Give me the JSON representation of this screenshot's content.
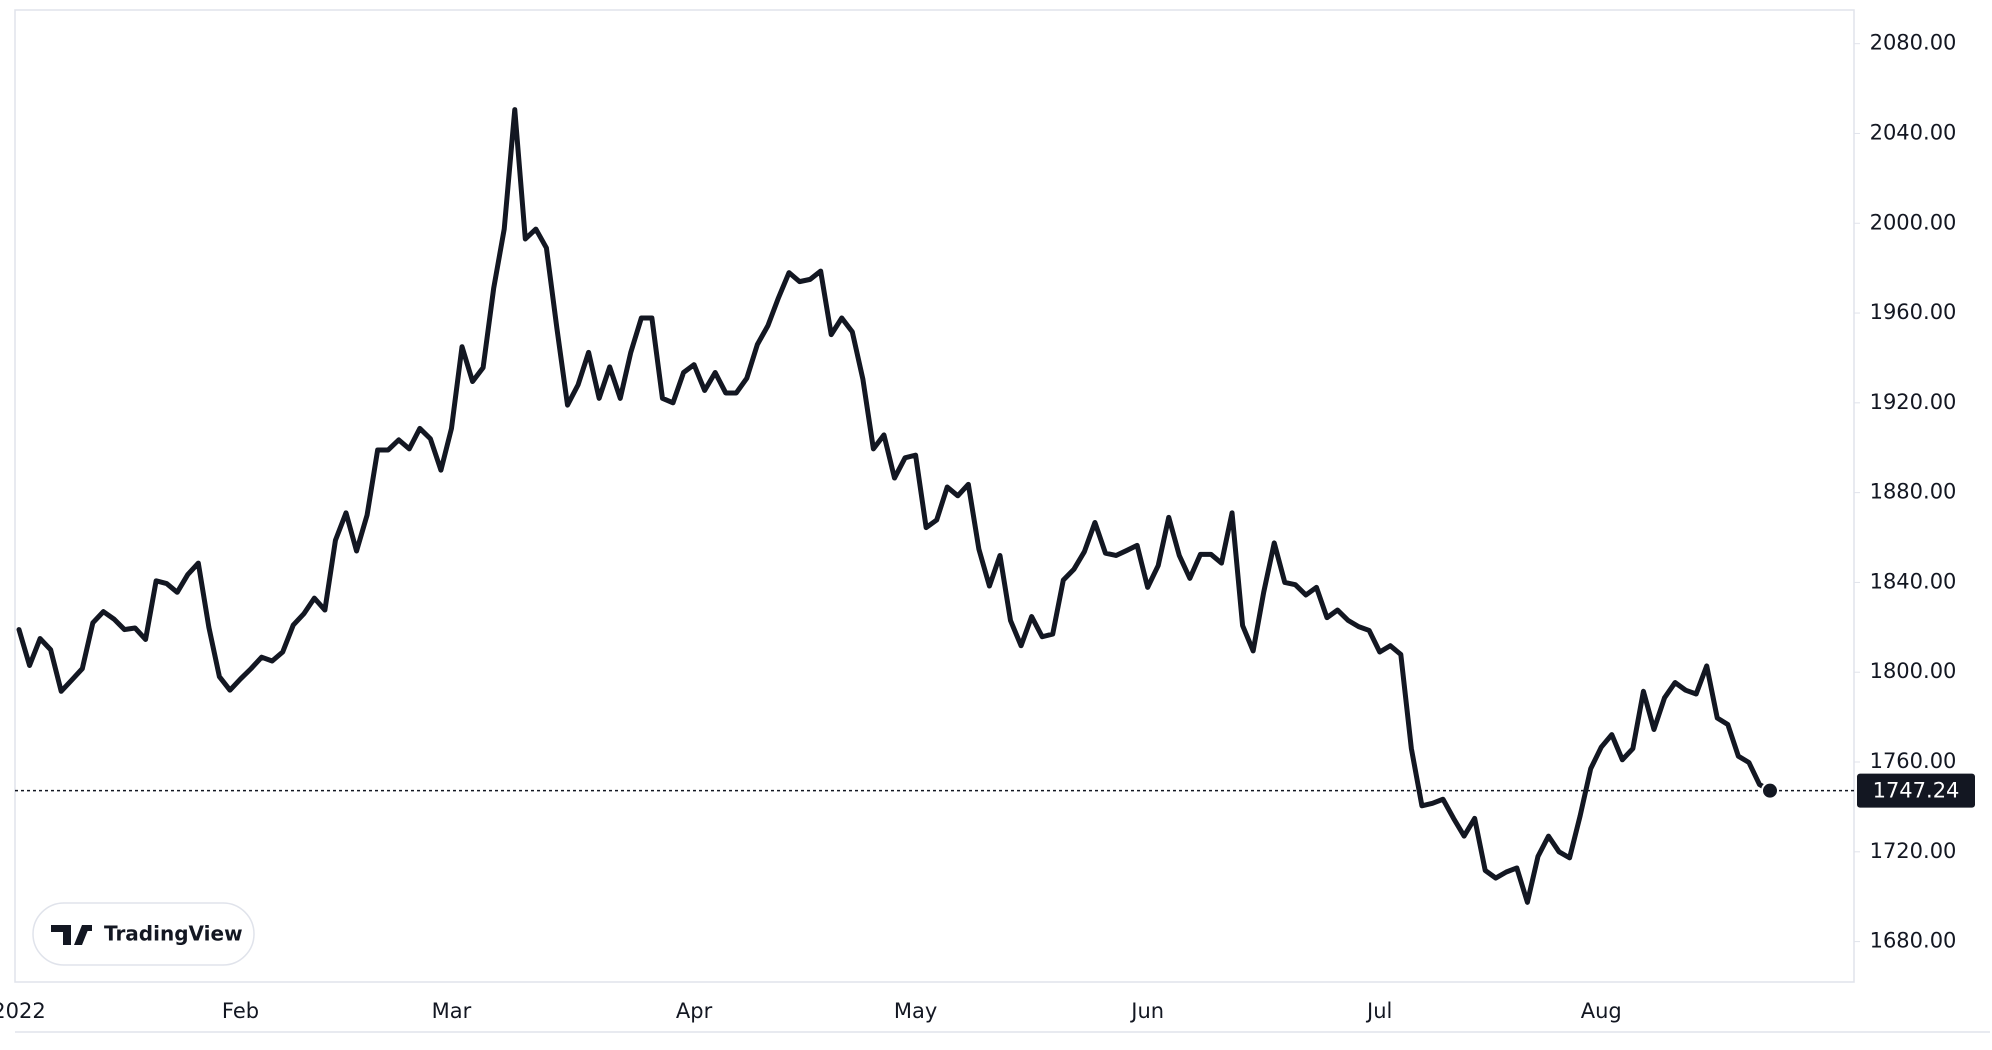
{
  "chart_data": {
    "type": "line",
    "watermark": "TradingView",
    "categories": [
      "2022",
      null,
      null,
      null,
      null,
      null,
      null,
      null,
      null,
      null,
      null,
      null,
      null,
      null,
      null,
      null,
      null,
      null,
      null,
      null,
      null,
      "Feb",
      null,
      null,
      null,
      null,
      null,
      null,
      null,
      null,
      null,
      null,
      null,
      null,
      null,
      null,
      null,
      null,
      null,
      null,
      null,
      "Mar",
      null,
      null,
      null,
      null,
      null,
      null,
      null,
      null,
      null,
      null,
      null,
      null,
      null,
      null,
      null,
      null,
      null,
      null,
      null,
      null,
      null,
      null,
      "Apr",
      null,
      null,
      null,
      null,
      null,
      null,
      null,
      null,
      null,
      null,
      null,
      null,
      null,
      null,
      null,
      null,
      null,
      null,
      null,
      null,
      "May",
      null,
      null,
      null,
      null,
      null,
      null,
      null,
      null,
      null,
      null,
      null,
      null,
      null,
      null,
      null,
      null,
      null,
      null,
      null,
      null,
      null,
      "Jun",
      null,
      null,
      null,
      null,
      null,
      null,
      null,
      null,
      null,
      null,
      null,
      null,
      null,
      null,
      null,
      null,
      null,
      null,
      null,
      null,
      null,
      "Jul",
      null,
      null,
      null,
      null,
      null,
      null,
      null,
      null,
      null,
      null,
      null,
      null,
      null,
      null,
      null,
      null,
      null,
      null,
      null,
      null,
      "Aug",
      null,
      null,
      null,
      null,
      null,
      null,
      null,
      null,
      null,
      null,
      null,
      null,
      null,
      null,
      null,
      null
    ],
    "values": [
      1819,
      1803,
      1815,
      1810,
      1791.5,
      1796.5,
      1801.6,
      1822,
      1827,
      1823.7,
      1819,
      1819.7,
      1814.6,
      1840.7,
      1839.5,
      1835.6,
      1843.5,
      1848.6,
      1820,
      1798,
      1792,
      1797,
      1801.6,
      1806.7,
      1805,
      1809,
      1821,
      1826,
      1833,
      1827.7,
      1858.8,
      1871,
      1854,
      1870,
      1899,
      1899,
      1903.5,
      1899.5,
      1908.6,
      1904,
      1890,
      1908.6,
      1945,
      1929.5,
      1935.7,
      1971,
      1997.4,
      2050.6,
      1993,
      1997.4,
      1989,
      1953,
      1919,
      1928,
      1942.5,
      1922,
      1936,
      1922,
      1942.5,
      1957.8,
      1957.8,
      1922,
      1920,
      1933.5,
      1937,
      1925.5,
      1933.5,
      1924.4,
      1924.4,
      1931,
      1946,
      1954.4,
      1966.8,
      1978,
      1974,
      1975,
      1978.7,
      1950.4,
      1957.8,
      1951.6,
      1930.6,
      1899.5,
      1905.7,
      1886.5,
      1895.5,
      1896.7,
      1864.4,
      1867.8,
      1882.5,
      1878.6,
      1883.7,
      1854.8,
      1838.4,
      1852,
      1823,
      1811.8,
      1824.8,
      1815.8,
      1817,
      1841,
      1845.8,
      1853.7,
      1866.7,
      1853,
      1852,
      1854.2,
      1856.5,
      1837.8,
      1847.5,
      1869,
      1852,
      1841.8,
      1852.5,
      1852.5,
      1848.6,
      1871,
      1820.8,
      1809.5,
      1835.6,
      1857.6,
      1840,
      1839,
      1834.4,
      1837.8,
      1824.3,
      1827.7,
      1823.1,
      1820.3,
      1818.6,
      1809,
      1811.8,
      1807.9,
      1766,
      1740.5,
      1741.6,
      1743.4,
      1734.9,
      1727,
      1734.9,
      1711.7,
      1708.3,
      1711,
      1712.8,
      1697.5,
      1717.9,
      1727,
      1720,
      1717.3,
      1736,
      1757,
      1766.6,
      1772.2,
      1761,
      1766,
      1791.5,
      1774.5,
      1788.6,
      1795.4,
      1792,
      1790.3,
      1802.8,
      1779.6,
      1776.7,
      1762.6,
      1759.8,
      1750,
      1747.24
    ],
    "color": "#131722",
    "ylim": [
      1662,
      2095
    ],
    "yticks": [
      {
        "value": 1680,
        "label": "1680.00"
      },
      {
        "value": 1720,
        "label": "1720.00"
      },
      {
        "value": 1760,
        "label": "1760.00"
      },
      {
        "value": 1800,
        "label": "1800.00"
      },
      {
        "value": 1840,
        "label": "1840.00"
      },
      {
        "value": 1880,
        "label": "1880.00"
      },
      {
        "value": 1920,
        "label": "1920.00"
      },
      {
        "value": 1960,
        "label": "1960.00"
      },
      {
        "value": 2000,
        "label": "2000.00"
      },
      {
        "value": 2040,
        "label": "2040.00"
      },
      {
        "value": 2080,
        "label": "2080.00"
      }
    ],
    "grid": false
  }
}
